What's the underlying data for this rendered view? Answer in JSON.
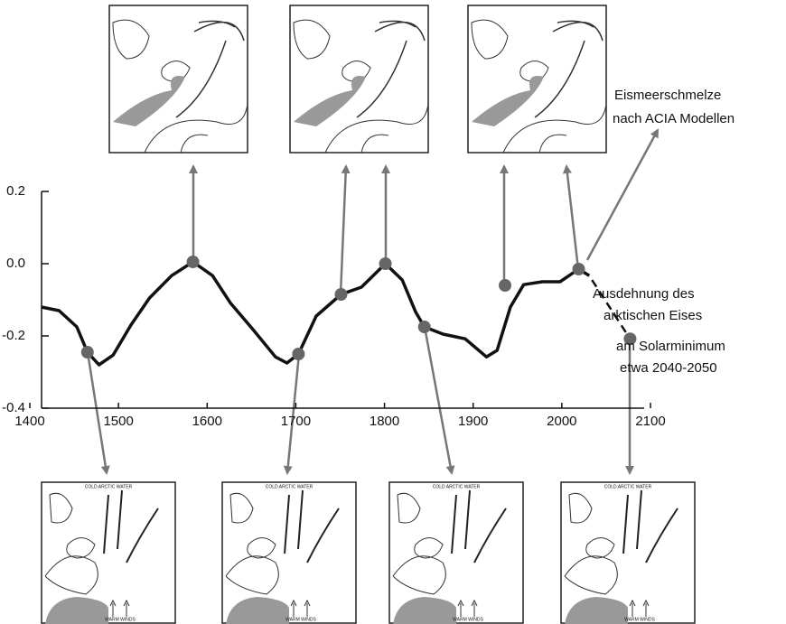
{
  "chart_data": {
    "type": "line",
    "x": [
      1413,
      1433,
      1453,
      1465,
      1478,
      1494,
      1514,
      1535,
      1560,
      1584,
      1606,
      1626,
      1652,
      1677,
      1690,
      1703,
      1723,
      1751,
      1774,
      1801,
      1820,
      1835,
      1845,
      1866,
      1891,
      1915,
      1927,
      1942,
      1957,
      1978,
      1998,
      2019,
      2031
    ],
    "values": [
      -0.12,
      -0.13,
      -0.175,
      -0.245,
      -0.28,
      -0.253,
      -0.17,
      -0.095,
      -0.033,
      0.005,
      -0.033,
      -0.108,
      -0.183,
      -0.258,
      -0.275,
      -0.25,
      -0.145,
      -0.085,
      -0.065,
      0.0,
      -0.045,
      -0.133,
      -0.175,
      -0.195,
      -0.208,
      -0.258,
      -0.24,
      -0.12,
      -0.058,
      -0.05,
      -0.05,
      -0.015,
      -0.033
    ],
    "color": "#111111",
    "projection": {
      "x": [
        2034,
        2077
      ],
      "values": [
        -0.045,
        -0.208
      ]
    },
    "points": {
      "x": [
        1465,
        1584,
        1703,
        1751,
        1801,
        1845,
        1936,
        2019,
        2077
      ],
      "values": [
        -0.245,
        0.005,
        -0.25,
        -0.085,
        0.0,
        -0.175,
        -0.06,
        -0.015,
        -0.208
      ],
      "color": "#666666"
    },
    "xlim": [
      1400,
      2100
    ],
    "ylim": [
      -0.4,
      0.2
    ],
    "xticks": [
      1400,
      1500,
      1600,
      1700,
      1800,
      1900,
      2000,
      2100
    ],
    "yticks": [
      -0.4,
      -0.2,
      {
        "value": 0,
        "label": "0.0"
      },
      0.2
    ],
    "annotations": [
      {
        "lines": [
          "Eismeerschmelze",
          "nach ACIA Modellen"
        ]
      },
      {
        "lines": [
          "Ausdehnung des",
          "arktischen Eises"
        ]
      },
      {
        "lines": [
          "am Solarminimum",
          "etwa 2040-2050"
        ]
      }
    ],
    "map_labels": {
      "top": "COLD ARCTIC WATER",
      "bottom": "WARM WINDS"
    }
  }
}
